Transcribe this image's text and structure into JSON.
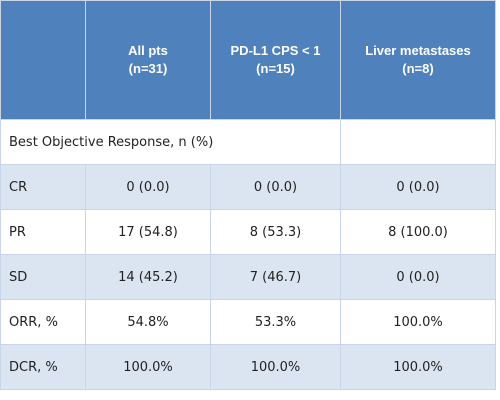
{
  "table": {
    "header": [
      {
        "label": "All pts",
        "n": "(n=31)"
      },
      {
        "label": "PD-L1 CPS < 1",
        "n": "(n=15)"
      },
      {
        "label": "Liver metastases",
        "n": "(n=8)"
      }
    ],
    "section": "Best Objective Response, n (%)",
    "rows": [
      [
        "CR",
        "0 (0.0)",
        "0 (0.0)",
        "0 (0.0)"
      ],
      [
        "PR",
        "17 (54.8)",
        "8 (53.3)",
        "8 (100.0)"
      ],
      [
        "SD",
        "14 (45.2)",
        "7 (46.7)",
        "0 (0.0)"
      ],
      [
        "ORR, %",
        "54.8%",
        "53.3%",
        "100.0%"
      ],
      [
        "DCR, %",
        "100.0%",
        "100.0%",
        "100.0%"
      ]
    ]
  }
}
